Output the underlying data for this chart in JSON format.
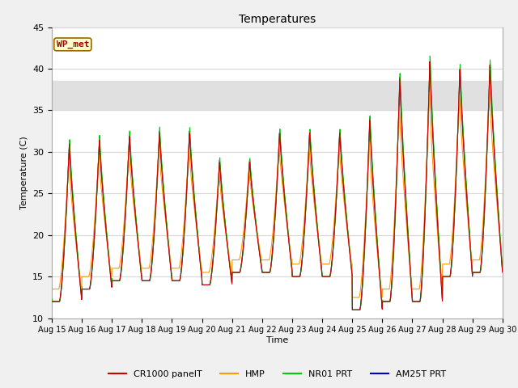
{
  "title": "Temperatures",
  "ylabel": "Temperature (C)",
  "xlabel": "Time",
  "ylim": [
    10,
    45
  ],
  "shade_band": [
    35,
    38.5
  ],
  "shade_color": "#e0e0e0",
  "series_colors": {
    "CR1000 panelT": "#cc0000",
    "HMP": "#ff9900",
    "NR01 PRT": "#00cc00",
    "AM25T PRT": "#0000cc"
  },
  "legend_labels": [
    "CR1000 panelT",
    "HMP",
    "NR01 PRT",
    "AM25T PRT"
  ],
  "station_label": "WP_met",
  "station_label_bg": "#ffffcc",
  "station_label_border": "#996600",
  "station_label_text_color": "#990000",
  "bg_color": "#f0f0f0",
  "plot_bg": "#ffffff",
  "grid_color": "#d8d8d8",
  "tick_labels": [
    "Aug 15",
    "Aug 16",
    "Aug 17",
    "Aug 18",
    "Aug 19",
    "Aug 20",
    "Aug 21",
    "Aug 22",
    "Aug 23",
    "Aug 24",
    "Aug 25",
    "Aug 26",
    "Aug 27",
    "Aug 28",
    "Aug 29",
    "Aug 30"
  ],
  "n_days": 15
}
